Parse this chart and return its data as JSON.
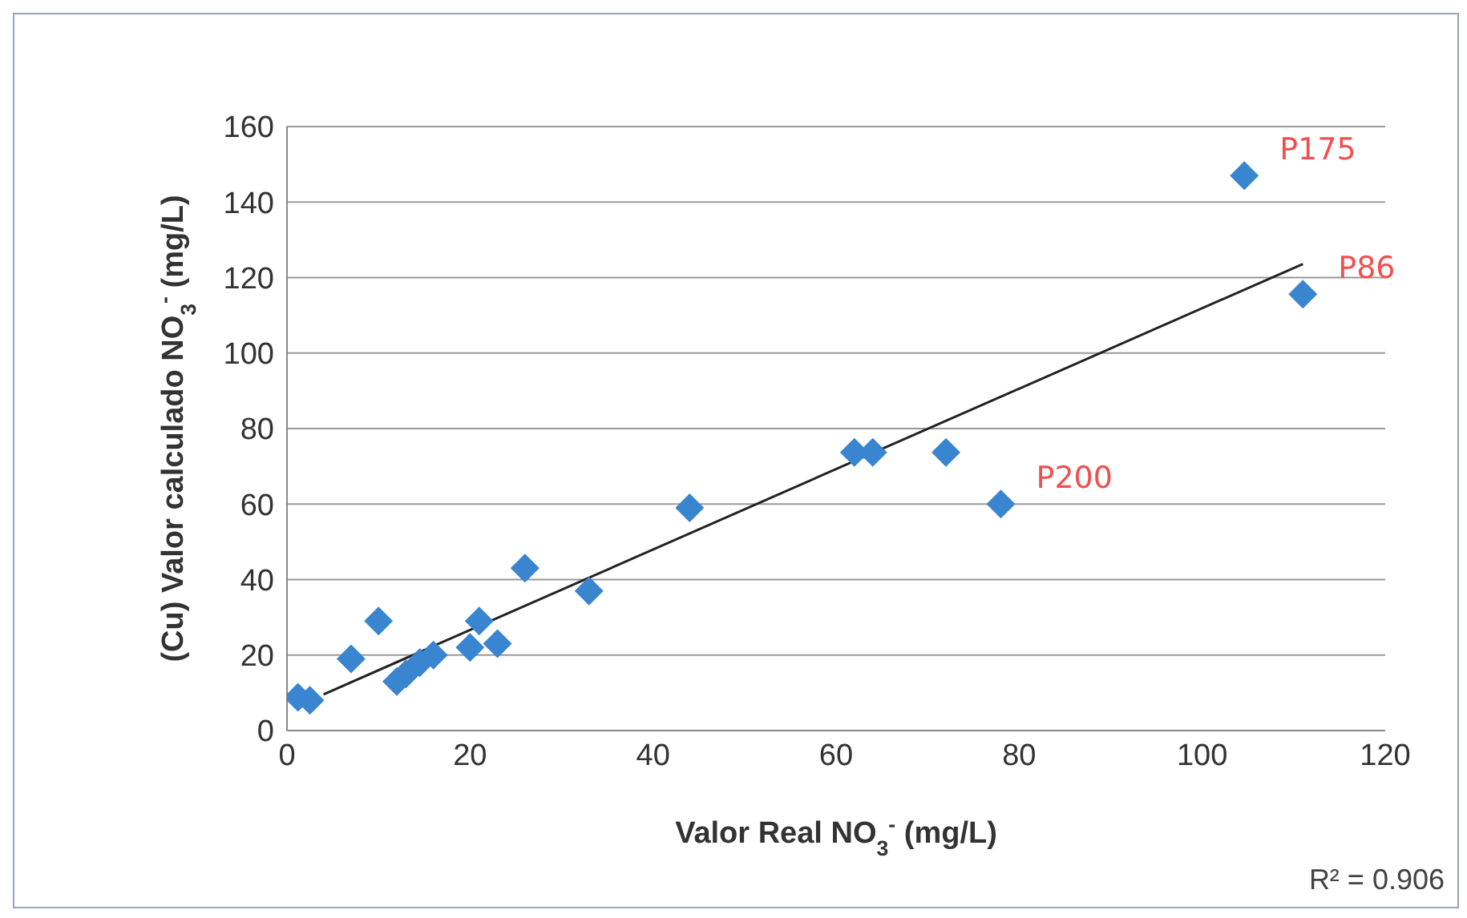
{
  "chart_data": {
    "type": "scatter",
    "xlabel": "Valor Real NO$_{3}$$^{-}$ (mg/L)",
    "ylabel": "(Cu) Valor calculado NO$_{3}$$^{-}$ (mg/L)",
    "xlim": [
      0,
      120
    ],
    "xticks": [
      0,
      20,
      40,
      60,
      80,
      100,
      120
    ],
    "ylim": [
      0,
      160
    ],
    "yticks": [
      0,
      20,
      40,
      60,
      80,
      100,
      120,
      140,
      160
    ],
    "grid": "y",
    "marker": "diamond",
    "series": [
      {
        "color": "#3a85cf",
        "x": [
          1.2,
          2.5,
          7,
          10,
          12,
          13,
          14.5,
          16,
          20,
          21,
          23,
          26,
          33,
          44,
          62,
          64,
          72,
          78,
          104.6,
          111
        ],
        "values": [
          8.8,
          8,
          19,
          29,
          13,
          15,
          18,
          20,
          22,
          29,
          23,
          43,
          37,
          59,
          73.7,
          73.7,
          73.7,
          60,
          147,
          115.6
        ]
      },
      {
        "type": "line",
        "marker": "none",
        "color": "#222222",
        "x": [
          4,
          111
        ],
        "values": [
          9.6,
          123.6
        ]
      }
    ],
    "annotations": [
      {
        "text": "P175",
        "x": 104.6,
        "y": 147
      },
      {
        "text": "P86",
        "x": 111,
        "y": 115.6
      },
      {
        "text": "P200",
        "x": 78,
        "y": 60
      },
      "R² = 0.906"
    ]
  }
}
